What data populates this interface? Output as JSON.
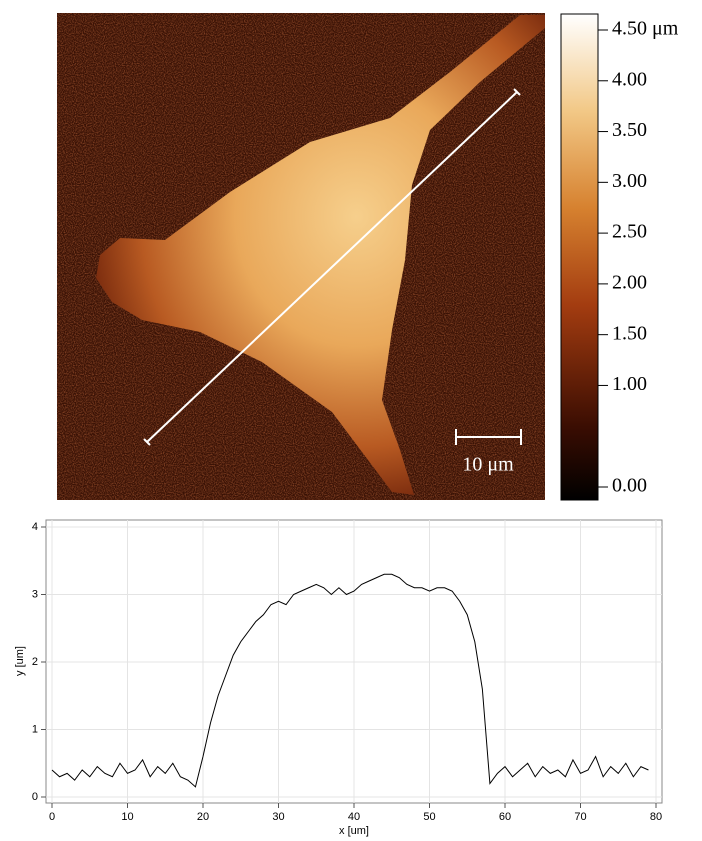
{
  "chart_data": [
    {
      "type": "image",
      "colorbar": {
        "clim": [
          0,
          4.5
        ],
        "ticks": [
          {
            "value": 4.5,
            "label": "4.50 μm"
          },
          {
            "value": 4,
            "label": "4.00"
          },
          {
            "value": 3.5,
            "label": "3.50"
          },
          {
            "value": 3,
            "label": "3.00"
          },
          {
            "value": 2.5,
            "label": "2.50"
          },
          {
            "value": 2,
            "label": "2.00"
          },
          {
            "value": 1.5,
            "label": "1.50"
          },
          {
            "value": 1,
            "label": "1.00"
          },
          {
            "value": 0,
            "label": "0.00"
          }
        ]
      },
      "scale_bar": "10 μm"
    },
    {
      "type": "line",
      "x": [
        0,
        1,
        2,
        3,
        4,
        5,
        6,
        7,
        8,
        9,
        10,
        11,
        12,
        13,
        14,
        15,
        16,
        17,
        18,
        19,
        20,
        21,
        22,
        23,
        24,
        25,
        26,
        27,
        28,
        29,
        30,
        31,
        32,
        33,
        34,
        35,
        36,
        37,
        38,
        39,
        40,
        41,
        42,
        43,
        44,
        45,
        46,
        47,
        48,
        49,
        50,
        51,
        52,
        53,
        54,
        55,
        56,
        57,
        58,
        59,
        60,
        61,
        62,
        63,
        64,
        65,
        66,
        67,
        68,
        69,
        70,
        71,
        72,
        73,
        74,
        75,
        76,
        77,
        78,
        79
      ],
      "series": [
        {
          "color": "#000000",
          "values": [
            0.4,
            0.3,
            0.35,
            0.25,
            0.4,
            0.3,
            0.45,
            0.35,
            0.3,
            0.5,
            0.35,
            0.4,
            0.55,
            0.3,
            0.45,
            0.35,
            0.5,
            0.3,
            0.25,
            0.15,
            0.6,
            1.1,
            1.5,
            1.8,
            2.1,
            2.3,
            2.45,
            2.6,
            2.7,
            2.85,
            2.9,
            2.85,
            3.0,
            3.05,
            3.1,
            3.15,
            3.1,
            3.0,
            3.1,
            3.0,
            3.05,
            3.15,
            3.2,
            3.25,
            3.3,
            3.3,
            3.25,
            3.15,
            3.1,
            3.1,
            3.05,
            3.1,
            3.1,
            3.05,
            2.9,
            2.7,
            2.3,
            1.6,
            0.2,
            0.35,
            0.45,
            0.3,
            0.4,
            0.5,
            0.3,
            0.45,
            0.35,
            0.4,
            0.3,
            0.55,
            0.35,
            0.4,
            0.6,
            0.3,
            0.45,
            0.35,
            0.5,
            0.3,
            0.45,
            0.4
          ]
        }
      ],
      "xlim": [
        0,
        80
      ],
      "ylim": [
        0,
        4
      ],
      "xticks": [
        0,
        10,
        20,
        30,
        40,
        50,
        60,
        70,
        80
      ],
      "yticks": [
        0,
        1,
        2,
        3,
        4
      ],
      "xlabel": "x [um]",
      "ylabel": "y [um]",
      "grid": true
    }
  ]
}
